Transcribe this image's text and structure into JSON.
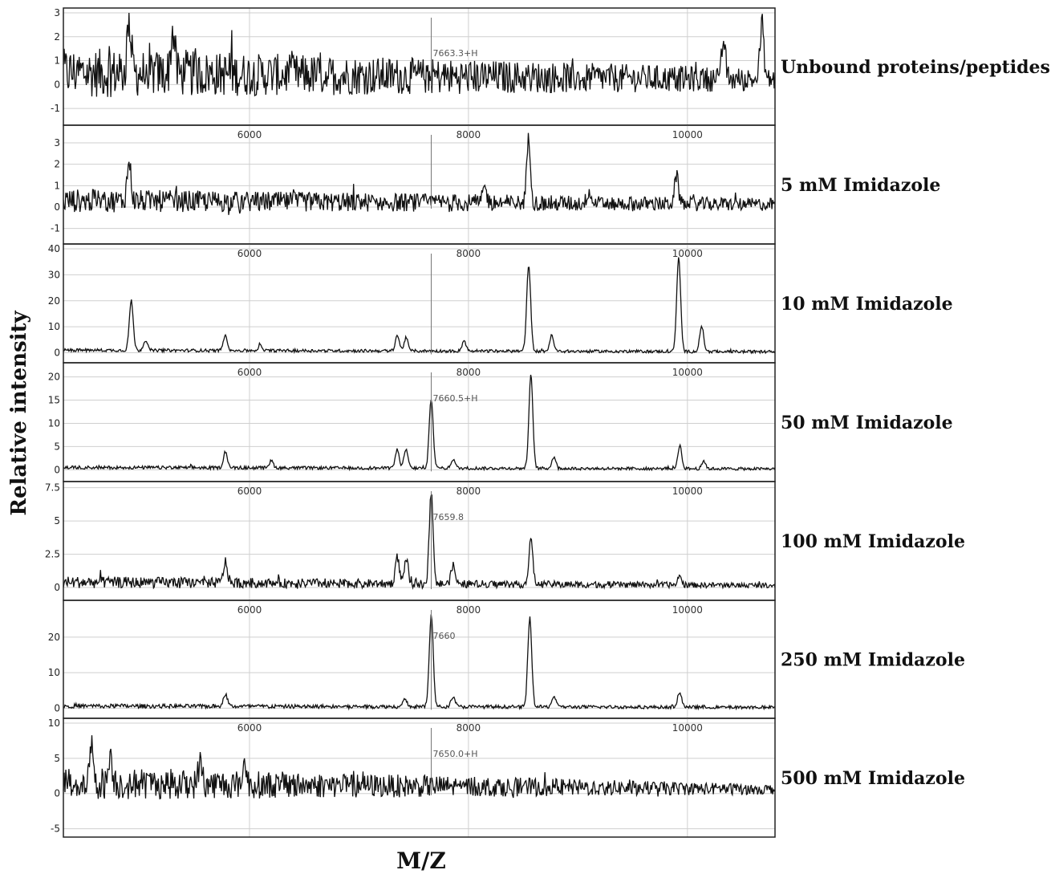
{
  "figure": {
    "ylabel": "Relative intensity",
    "xlabel": "M/Z"
  },
  "chart_data": {
    "type": "line",
    "xlim": [
      4300,
      10800
    ],
    "x_gridlines": [
      6000,
      8000,
      10000
    ],
    "x_tick_labels": [
      "6000",
      "8000",
      "10000"
    ],
    "grid": true,
    "panels": [
      {
        "name": "Unbound proteins/peptides",
        "ylim": [
          -1.5,
          3
        ],
        "yticks": [
          "3",
          "2",
          "1",
          "0",
          "-1"
        ],
        "ytick_values": [
          3,
          2,
          1,
          0,
          -1
        ],
        "marker_label": "7663.3+H",
        "marker_x": 7660,
        "show_x_labels": false,
        "noise": 1.05,
        "noise_decay": 0.55,
        "baseline": 0.5,
        "peaks": [
          [
            4900,
            2.3
          ],
          [
            5300,
            1.8
          ],
          [
            10330,
            1.6
          ],
          [
            10680,
            2.2
          ]
        ]
      },
      {
        "name": "5 mM Imidazole",
        "ylim": [
          -1.5,
          3.6
        ],
        "yticks": [
          "3",
          "2",
          "1",
          "0",
          "-1"
        ],
        "ytick_values": [
          3,
          2,
          1,
          0,
          -1
        ],
        "marker_label": "",
        "marker_x": 7660,
        "show_x_labels": true,
        "noise": 0.55,
        "noise_decay": 0.45,
        "baseline": 0.3,
        "peaks": [
          [
            4900,
            1.8
          ],
          [
            8550,
            3.0
          ],
          [
            9900,
            1.3
          ],
          [
            9100,
            0.6
          ],
          [
            8150,
            0.7
          ]
        ]
      },
      {
        "name": "10 mM Imidazole",
        "ylim": [
          -2,
          40
        ],
        "yticks": [
          "40",
          "30",
          "20",
          "10",
          "0"
        ],
        "ytick_values": [
          40,
          30,
          20,
          10,
          0
        ],
        "marker_label": "",
        "marker_x": 7660,
        "show_x_labels": true,
        "noise": 0.6,
        "noise_decay": 0.1,
        "baseline": 1,
        "peaks": [
          [
            4920,
            19
          ],
          [
            5050,
            4
          ],
          [
            5780,
            6
          ],
          [
            6100,
            2
          ],
          [
            7350,
            6
          ],
          [
            7430,
            5
          ],
          [
            7960,
            4
          ],
          [
            8550,
            33
          ],
          [
            8760,
            6
          ],
          [
            9920,
            36
          ],
          [
            10130,
            10
          ]
        ]
      },
      {
        "name": "50 mM Imidazole",
        "ylim": [
          -1.5,
          22
        ],
        "yticks": [
          "20",
          "15",
          "10",
          "5",
          "0"
        ],
        "ytick_values": [
          20,
          15,
          10,
          5,
          0
        ],
        "marker_label": "7660.5+H",
        "marker_x": 7660,
        "show_x_labels": true,
        "noise": 0.35,
        "noise_decay": 0.1,
        "baseline": 0.5,
        "peaks": [
          [
            5780,
            3.5
          ],
          [
            6200,
            1.5
          ],
          [
            7350,
            4
          ],
          [
            7430,
            4
          ],
          [
            7660,
            15
          ],
          [
            7860,
            2
          ],
          [
            8570,
            20
          ],
          [
            8780,
            2.5
          ],
          [
            9930,
            5
          ],
          [
            10150,
            1.5
          ]
        ]
      },
      {
        "name": "100 mM Imidazole",
        "ylim": [
          -0.6,
          7.6
        ],
        "yticks": [
          "7.5",
          "5",
          "2.5",
          "0"
        ],
        "ytick_values": [
          7.5,
          5,
          2.5,
          0
        ],
        "marker_label": "7659.8",
        "marker_x": 7660,
        "show_x_labels": true,
        "noise": 0.45,
        "noise_decay": 0.6,
        "baseline": 0.4,
        "peaks": [
          [
            5780,
            1.6
          ],
          [
            7350,
            2
          ],
          [
            7430,
            1.8
          ],
          [
            7660,
            6.8
          ],
          [
            7860,
            1.4
          ],
          [
            8570,
            3.3
          ],
          [
            9930,
            0.6
          ]
        ]
      },
      {
        "name": "250 mM Imidazole",
        "ylim": [
          -1.5,
          29
        ],
        "yticks": [
          "20",
          "10",
          "0"
        ],
        "ytick_values": [
          20,
          10,
          0
        ],
        "marker_label": "7660",
        "marker_x": 7660,
        "show_x_labels": true,
        "noise": 0.6,
        "noise_decay": 0.3,
        "baseline": 0.6,
        "peaks": [
          [
            5780,
            3.5
          ],
          [
            7420,
            2
          ],
          [
            7660,
            26
          ],
          [
            7860,
            3
          ],
          [
            8560,
            25
          ],
          [
            8780,
            3
          ],
          [
            9930,
            4
          ]
        ]
      },
      {
        "name": "500 mM Imidazole",
        "ylim": [
          -5.5,
          10
        ],
        "yticks": [
          "10",
          "5",
          "0",
          "-5"
        ],
        "ytick_values": [
          10,
          5,
          0,
          -5
        ],
        "marker_label": "7650.0+H",
        "marker_x": 7660,
        "show_x_labels": true,
        "noise": 2.4,
        "noise_decay": 0.7,
        "baseline": 1.5,
        "peaks": [
          [
            4560,
            5
          ],
          [
            4730,
            4
          ],
          [
            5550,
            3
          ],
          [
            5950,
            3
          ]
        ]
      }
    ]
  }
}
